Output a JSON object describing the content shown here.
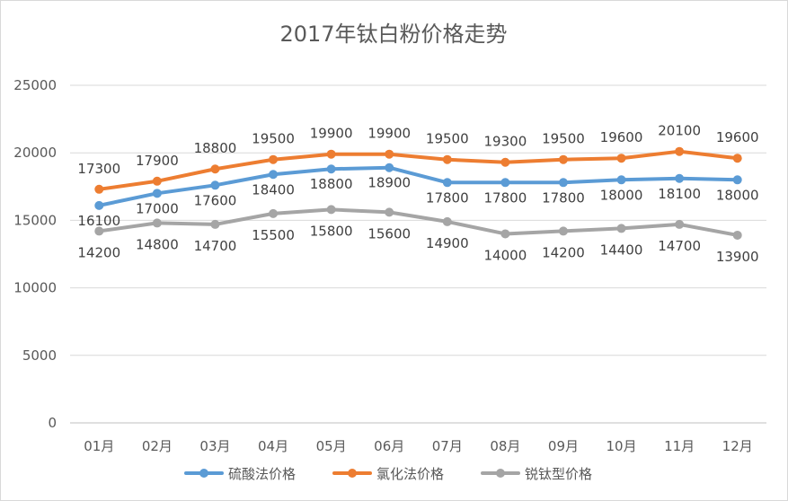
{
  "chart_data": {
    "type": "line",
    "title": "2017年钛白粉价格走势",
    "categories": [
      "01月",
      "02月",
      "03月",
      "04月",
      "05月",
      "06月",
      "07月",
      "08月",
      "09月",
      "10月",
      "11月",
      "12月"
    ],
    "ylim": [
      0,
      25000
    ],
    "yticks": [
      0,
      5000,
      10000,
      15000,
      20000,
      25000
    ],
    "grid": true,
    "legend_position": "bottom",
    "series": [
      {
        "name": "硫酸法价格",
        "color": "#5B9BD5",
        "values": [
          16100,
          17000,
          17600,
          18400,
          18800,
          18900,
          17800,
          17800,
          17800,
          18000,
          18100,
          18000
        ]
      },
      {
        "name": "氯化法价格",
        "color": "#ED7D31",
        "values": [
          17300,
          17900,
          18800,
          19500,
          19900,
          19900,
          19500,
          19300,
          19500,
          19600,
          20100,
          19600
        ]
      },
      {
        "name": "锐钛型价格",
        "color": "#A5A5A5",
        "values": [
          14200,
          14800,
          14700,
          15500,
          15800,
          15600,
          14900,
          14000,
          14200,
          14400,
          14700,
          13900
        ]
      }
    ]
  }
}
